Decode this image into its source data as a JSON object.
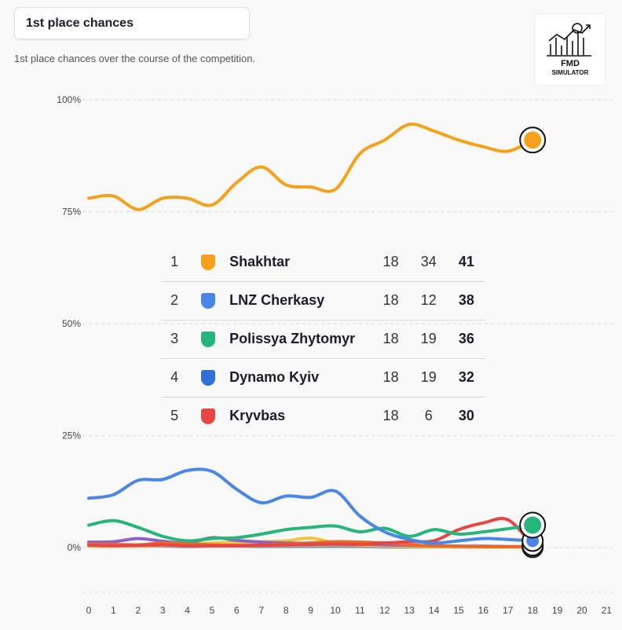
{
  "header": {
    "title": "1st place chances",
    "subtitle": "1st place chances over the course of the competition."
  },
  "logo": {
    "line1": "FMD",
    "line2": "SIMULATOR",
    "icon": "chart-with-football-icon"
  },
  "colors": {
    "shakhtar": "#f5a11c",
    "lnz": "#4a86e8",
    "polissya": "#26b57a",
    "dynamo": "#9aa0a6",
    "kryvbas": "#e84545",
    "orange": "#e86a2a",
    "purple": "#8e5fc7",
    "yellow": "#f2c33a"
  },
  "standings": [
    {
      "pos": "1",
      "team": "Shakhtar",
      "played": "18",
      "gd": "34",
      "pts": "41",
      "crest": "shakhtar-crest-icon",
      "crest_color": "#f5a11c"
    },
    {
      "pos": "2",
      "team": "LNZ Cherkasy",
      "played": "18",
      "gd": "12",
      "pts": "38",
      "crest": "lnz-crest-icon",
      "crest_color": "#4a86e8"
    },
    {
      "pos": "3",
      "team": "Polissya Zhytomyr",
      "played": "18",
      "gd": "19",
      "pts": "36",
      "crest": "polissya-crest-icon",
      "crest_color": "#26b57a"
    },
    {
      "pos": "4",
      "team": "Dynamo Kyiv",
      "played": "18",
      "gd": "19",
      "pts": "32",
      "crest": "dynamo-crest-icon",
      "crest_color": "#2f6fd6"
    },
    {
      "pos": "5",
      "team": "Kryvbas",
      "played": "18",
      "gd": "6",
      "pts": "30",
      "crest": "kryvbas-crest-icon",
      "crest_color": "#e84545"
    }
  ],
  "chart_data": {
    "type": "line",
    "x": [
      0,
      1,
      2,
      3,
      4,
      5,
      6,
      7,
      8,
      9,
      10,
      11,
      12,
      13,
      14,
      15,
      16,
      17,
      18
    ],
    "x_ticks": [
      "0",
      "1",
      "2",
      "3",
      "4",
      "5",
      "6",
      "7",
      "8",
      "9",
      "10",
      "11",
      "12",
      "13",
      "14",
      "15",
      "16",
      "17",
      "18",
      "19",
      "20",
      "21"
    ],
    "xlim": [
      0,
      21
    ],
    "y_ticks": [
      "0%",
      "25%",
      "50%",
      "75%",
      "100%"
    ],
    "ylim": [
      -10,
      102
    ],
    "grid": true,
    "series": [
      {
        "name": "Shakhtar",
        "color": "#f5a11c",
        "values": [
          78,
          78.5,
          75.5,
          78,
          78,
          76.5,
          81.5,
          85,
          81,
          80.5,
          80,
          88,
          91,
          94.5,
          93,
          91,
          89.5,
          88.5,
          91
        ]
      },
      {
        "name": "LNZ Cherkasy",
        "color": "#4a86e8",
        "values": [
          11,
          11.8,
          15,
          15.2,
          17.2,
          17,
          13,
          10,
          11.5,
          11.2,
          12.6,
          7,
          3.5,
          1.8,
          1,
          1.5,
          2,
          1.8,
          1.5
        ]
      },
      {
        "name": "Polissya Zhytomyr",
        "color": "#26b57a",
        "values": [
          5,
          6,
          4.5,
          2.5,
          1.5,
          2,
          2.2,
          3,
          4,
          4.5,
          4.8,
          3.5,
          4.3,
          2.5,
          4,
          3,
          3.5,
          4.2,
          5
        ]
      },
      {
        "name": "Kryvbas",
        "color": "#e84545",
        "values": [
          0.5,
          0.4,
          0.5,
          0.6,
          0.4,
          0.4,
          0.4,
          0.5,
          0.6,
          0.7,
          0.8,
          0.7,
          1,
          1.3,
          1.5,
          4,
          5.5,
          6.2,
          0.5
        ]
      },
      {
        "name": "",
        "color": "#e86a2a",
        "values": [
          0.8,
          0.7,
          0.6,
          1,
          0.8,
          0.6,
          0.5,
          0.6,
          0.8,
          1,
          1.3,
          1.2,
          1,
          0.6,
          0.4,
          0.3,
          0.2,
          0.2,
          0.2
        ]
      },
      {
        "name": "",
        "color": "#8e5fc7",
        "values": [
          1.2,
          1.3,
          2,
          1.4,
          1,
          2.2,
          1.6,
          1.2,
          1,
          1,
          1.2,
          0.8,
          0.6,
          0.5,
          0.4,
          0.3,
          0.3,
          0.2,
          0.2
        ]
      },
      {
        "name": "",
        "color": "#f2c33a",
        "values": [
          0.3,
          0.3,
          0.4,
          0.5,
          0.8,
          1,
          1.2,
          1.3,
          1.5,
          2.1,
          1,
          0.6,
          0.4,
          0.3,
          0.2,
          0.2,
          0.1,
          0.1,
          0.1
        ]
      },
      {
        "name": "Dynamo Kyiv",
        "color": "#9aa0a6",
        "values": [
          0.4,
          0.3,
          0.3,
          0.3,
          0.2,
          0.3,
          0.3,
          0.2,
          0.2,
          0.2,
          0.2,
          0.2,
          0.1,
          0.1,
          0.1,
          0.1,
          0.1,
          0.1,
          0.1
        ]
      }
    ],
    "title": "1st place chances",
    "xlabel": "",
    "ylabel": ""
  }
}
